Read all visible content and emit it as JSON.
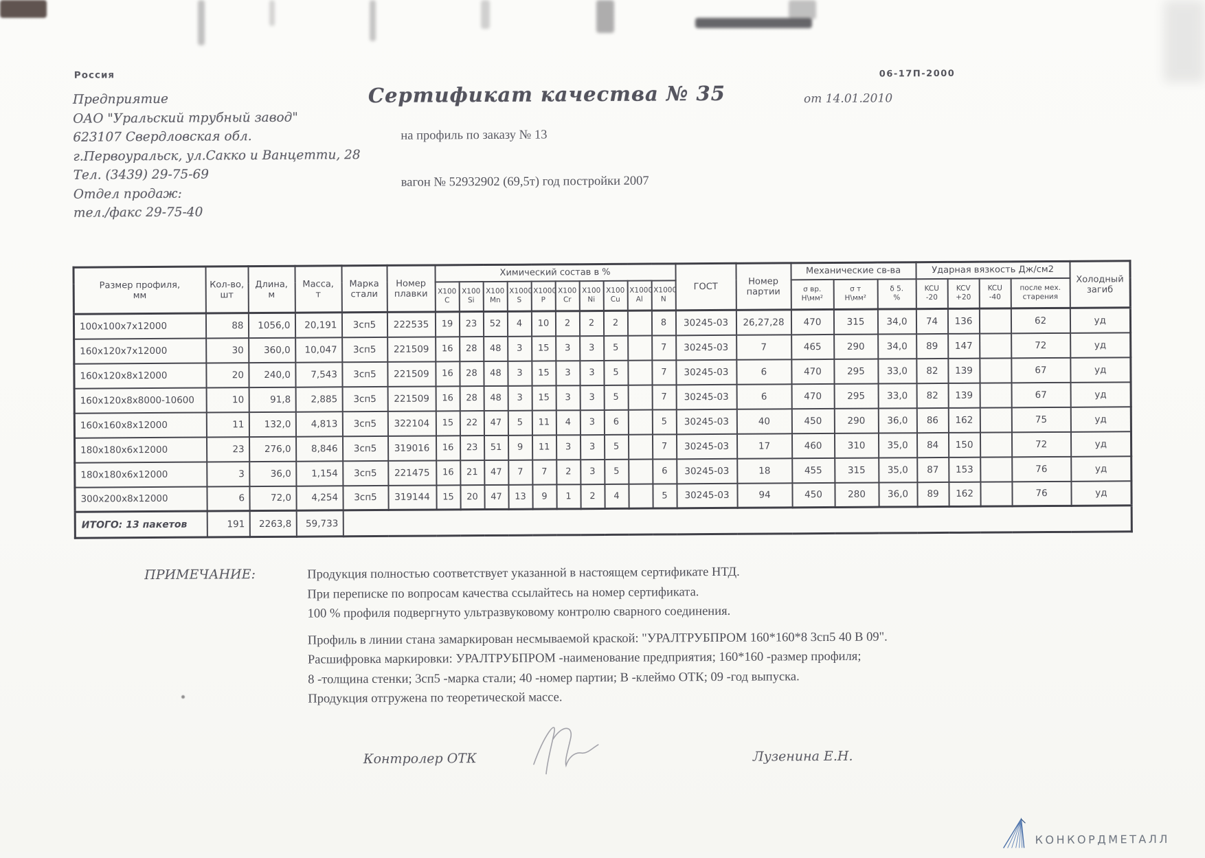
{
  "letterhead": {
    "country": "Россия",
    "lines": [
      "Предприятие",
      "ОАО \"Уральский трубный завод\"",
      "623107 Свердловская обл.",
      "г.Первоуральск, ул.Сакко и Ванцетти, 28",
      "Тел. (3439) 29-75-69",
      "Отдел продаж:",
      "тел./факс  29-75-40"
    ]
  },
  "header": {
    "doc_code": "06-17П-2000",
    "title": "Сертификат качества  № 35",
    "date_line": "от 14.01.2010",
    "subtitle": "на профиль по заказу № 13",
    "wagon_line": "вагон № 52932902 (69,5т) год постройки 2007"
  },
  "table": {
    "header": {
      "col_size": "Размер профиля,\nмм",
      "col_qty": "Кол-во,\nшт",
      "col_length": "Длина,\nм",
      "col_mass": "Масса,\nт",
      "col_grade": "Марка\nстали",
      "col_heat": "Номер\nплавки",
      "chem_group": "Химический состав  в %",
      "chem_cols": [
        "X100\nC",
        "X100\nSi",
        "X100\nMn",
        "X1000\nS",
        "X1000\nP",
        "X100\nCr",
        "X100\nNi",
        "X100\nCu",
        "X1000\nAl",
        "X1000\nN"
      ],
      "col_gost": "ГОСТ",
      "col_batch": "Номер\nпартии",
      "mech_group": "Механические св-ва",
      "mech_cols": [
        "σ вр.\nН\\мм²",
        "σ т\nН\\мм²",
        "δ 5.\n%"
      ],
      "impact_group": "Ударная вязкость Дж/см2",
      "impact_cols": [
        "KCU\n-20",
        "KCV\n+20",
        "KCU\n-40",
        "после мех.\nстарения"
      ],
      "col_bend": "Холодный\nзагиб"
    },
    "rows": [
      [
        "100x100x7x12000",
        "88",
        "1056,0",
        "20,191",
        "3сп5",
        "222535",
        "19",
        "23",
        "52",
        "4",
        "10",
        "2",
        "2",
        "2",
        "",
        "8",
        "30245-03",
        "26,27,28",
        "470",
        "315",
        "34,0",
        "74",
        "136",
        "",
        "62",
        "уд"
      ],
      [
        "160x120x7x12000",
        "30",
        "360,0",
        "10,047",
        "3сп5",
        "221509",
        "16",
        "28",
        "48",
        "3",
        "15",
        "3",
        "3",
        "5",
        "",
        "7",
        "30245-03",
        "7",
        "465",
        "290",
        "34,0",
        "89",
        "147",
        "",
        "72",
        "уд"
      ],
      [
        "160x120x8x12000",
        "20",
        "240,0",
        "7,543",
        "3сп5",
        "221509",
        "16",
        "28",
        "48",
        "3",
        "15",
        "3",
        "3",
        "5",
        "",
        "7",
        "30245-03",
        "6",
        "470",
        "295",
        "33,0",
        "82",
        "139",
        "",
        "67",
        "уд"
      ],
      [
        "160x120x8x8000-10600",
        "10",
        "91,8",
        "2,885",
        "3сп5",
        "221509",
        "16",
        "28",
        "48",
        "3",
        "15",
        "3",
        "3",
        "5",
        "",
        "7",
        "30245-03",
        "6",
        "470",
        "295",
        "33,0",
        "82",
        "139",
        "",
        "67",
        "уд"
      ],
      [
        "160x160x8x12000",
        "11",
        "132,0",
        "4,813",
        "3сп5",
        "322104",
        "15",
        "22",
        "47",
        "5",
        "11",
        "4",
        "3",
        "6",
        "",
        "5",
        "30245-03",
        "40",
        "450",
        "290",
        "36,0",
        "86",
        "162",
        "",
        "75",
        "уд"
      ],
      [
        "180x180x6x12000",
        "23",
        "276,0",
        "8,846",
        "3сп5",
        "319016",
        "16",
        "23",
        "51",
        "9",
        "11",
        "3",
        "3",
        "5",
        "",
        "7",
        "30245-03",
        "17",
        "460",
        "310",
        "35,0",
        "84",
        "150",
        "",
        "72",
        "уд"
      ],
      [
        "180x180x6x12000",
        "3",
        "36,0",
        "1,154",
        "3сп5",
        "221475",
        "16",
        "21",
        "47",
        "7",
        "7",
        "2",
        "3",
        "5",
        "",
        "6",
        "30245-03",
        "18",
        "455",
        "315",
        "35,0",
        "87",
        "153",
        "",
        "76",
        "уд"
      ],
      [
        "300x200x8x12000",
        "6",
        "72,0",
        "4,254",
        "3сп5",
        "319144",
        "15",
        "20",
        "47",
        "13",
        "9",
        "1",
        "2",
        "4",
        "",
        "5",
        "30245-03",
        "94",
        "450",
        "280",
        "36,0",
        "89",
        "162",
        "",
        "76",
        "уд"
      ]
    ],
    "total": {
      "label": "ИТОГО: 13 пакетов",
      "qty": "191",
      "length": "2263,8",
      "mass": "59,733"
    }
  },
  "note": {
    "label": "ПРИМЕЧАНИЕ:",
    "lines": [
      "Продукция полностью соответствует указанной в настоящем сертификате НТД.",
      "При переписке по вопросам качества ссылайтесь на номер сертификата.",
      "100 % профиля подвергнуто ультразвуковому контролю сварного соединения.",
      "Профиль в линии стана замаркирован несмываемой краской: \"УРАЛТРУБПРОМ  160*160*8  3сп5  40  В  09\".",
      "Расшифровка маркировки: УРАЛТРУБПРОМ -наименование предприятия; 160*160 -размер профиля;",
      "8 -толщина стенки; 3сп5 -марка стали; 40 -номер партии; В -клеймо ОТК; 09 -год выпуска.",
      "Продукция отгружена по теоретической массе."
    ]
  },
  "signature": {
    "left": "Контролер ОТК",
    "right": "Лузенина Е.Н."
  },
  "footer": {
    "logo_text": "КОНКОРДМЕТАЛЛ",
    "logo_color": "#6e7580",
    "logo_accent": "#4a6fa8"
  }
}
